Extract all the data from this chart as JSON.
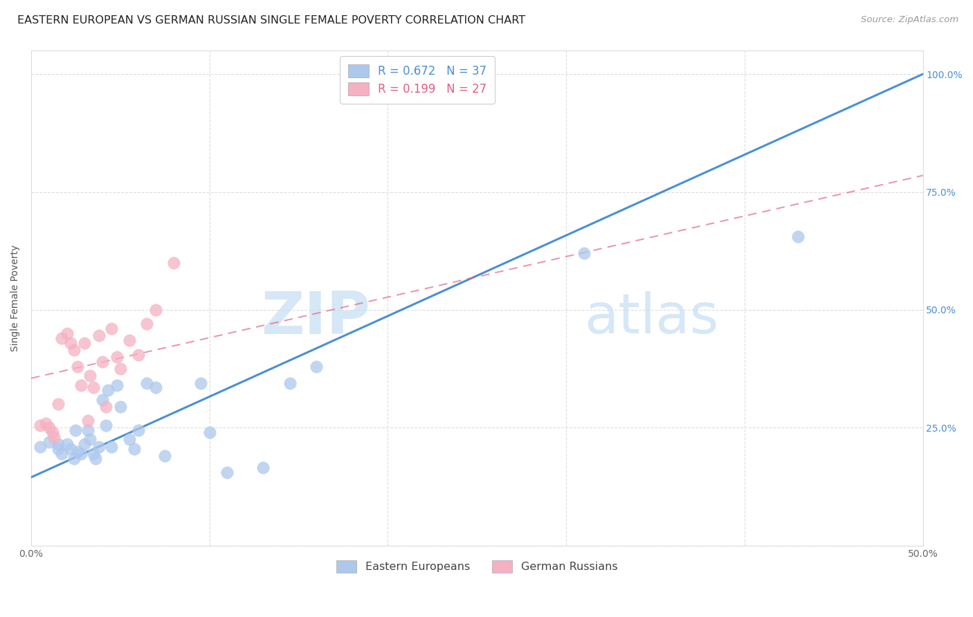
{
  "title": "EASTERN EUROPEAN VS GERMAN RUSSIAN SINGLE FEMALE POVERTY CORRELATION CHART",
  "source": "Source: ZipAtlas.com",
  "ylabel": "Single Female Poverty",
  "xlim": [
    0.0,
    0.5
  ],
  "ylim": [
    0.0,
    1.05
  ],
  "x_ticks": [
    0.0,
    0.1,
    0.2,
    0.3,
    0.4,
    0.5
  ],
  "x_tick_labels": [
    "0.0%",
    "",
    "",
    "",
    "",
    "50.0%"
  ],
  "y_ticks": [
    0.0,
    0.25,
    0.5,
    0.75,
    1.0
  ],
  "y_tick_labels_right": [
    "",
    "25.0%",
    "50.0%",
    "75.0%",
    "100.0%"
  ],
  "blue_R": 0.672,
  "blue_N": 37,
  "pink_R": 0.199,
  "pink_N": 27,
  "blue_color": "#adc8ed",
  "blue_line_color": "#4a8fd4",
  "pink_color": "#f5b0c2",
  "pink_line_color": "#e06080",
  "watermark_zip": "ZIP",
  "watermark_atlas": "atlas",
  "legend_labels": [
    "Eastern Europeans",
    "German Russians"
  ],
  "blue_line_x0": 0.0,
  "blue_line_y0": 0.145,
  "blue_line_x1": 0.5,
  "blue_line_y1": 1.0,
  "pink_line_x0": 0.0,
  "pink_line_y0": 0.355,
  "pink_line_x1": 0.5,
  "pink_line_y1": 0.785,
  "blue_scatter_x": [
    0.005,
    0.01,
    0.015,
    0.015,
    0.017,
    0.02,
    0.022,
    0.024,
    0.025,
    0.026,
    0.028,
    0.03,
    0.032,
    0.033,
    0.035,
    0.036,
    0.038,
    0.04,
    0.042,
    0.043,
    0.045,
    0.048,
    0.05,
    0.055,
    0.058,
    0.06,
    0.065,
    0.07,
    0.075,
    0.095,
    0.1,
    0.11,
    0.13,
    0.145,
    0.16,
    0.31,
    0.43
  ],
  "blue_scatter_y": [
    0.21,
    0.22,
    0.215,
    0.205,
    0.195,
    0.215,
    0.205,
    0.185,
    0.245,
    0.2,
    0.195,
    0.215,
    0.245,
    0.225,
    0.195,
    0.185,
    0.21,
    0.31,
    0.255,
    0.33,
    0.21,
    0.34,
    0.295,
    0.225,
    0.205,
    0.245,
    0.345,
    0.335,
    0.19,
    0.345,
    0.24,
    0.155,
    0.165,
    0.345,
    0.38,
    0.62,
    0.655
  ],
  "pink_scatter_x": [
    0.005,
    0.008,
    0.01,
    0.012,
    0.013,
    0.015,
    0.017,
    0.02,
    0.022,
    0.024,
    0.026,
    0.028,
    0.03,
    0.032,
    0.033,
    0.035,
    0.038,
    0.04,
    0.042,
    0.045,
    0.048,
    0.05,
    0.055,
    0.06,
    0.065,
    0.07,
    0.08
  ],
  "pink_scatter_y": [
    0.255,
    0.26,
    0.25,
    0.24,
    0.23,
    0.3,
    0.44,
    0.45,
    0.43,
    0.415,
    0.38,
    0.34,
    0.43,
    0.265,
    0.36,
    0.335,
    0.445,
    0.39,
    0.295,
    0.46,
    0.4,
    0.375,
    0.435,
    0.405,
    0.47,
    0.5,
    0.6
  ],
  "background_color": "#ffffff",
  "grid_color": "#dddddd",
  "title_fontsize": 11.5,
  "axis_label_fontsize": 10,
  "tick_fontsize": 10
}
